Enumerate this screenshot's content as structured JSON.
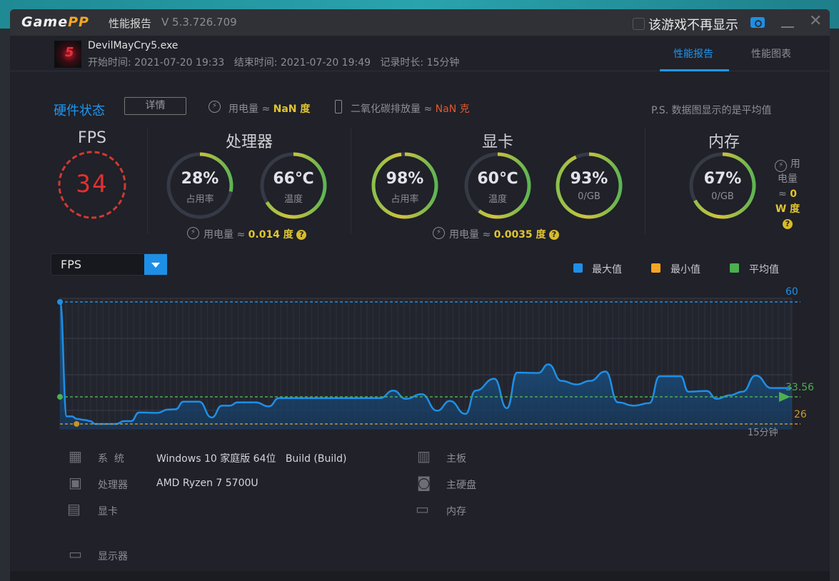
{
  "app": {
    "logo": "GamePP",
    "title": "性能报告",
    "version": "V 5.3.726.709",
    "hide_checkbox_label": "该游戏不再显示",
    "hide_checked": false
  },
  "game": {
    "name": "DevilMayCry5.exe",
    "start_label": "开始时间:",
    "start": "2021-07-20 19:33",
    "end_label": "结束时间:",
    "end": "2021-07-20 19:49",
    "duration_label": "记录时长:",
    "duration": "15分钟"
  },
  "tabs": [
    {
      "label": "性能报告",
      "active": true
    },
    {
      "label": "性能图表",
      "active": false
    }
  ],
  "hw": {
    "title": "硬件状态",
    "detail_btn": "详情",
    "power_label": "用电量 ≈",
    "power_value": "NaN 度",
    "co2_label": "二氧化碳排放量 ≈",
    "co2_value": "NaN 克",
    "note": "P.S. 数据图显示的是平均值"
  },
  "fps": {
    "title": "FPS",
    "value": "34"
  },
  "cpu": {
    "title": "处理器",
    "usage": {
      "value": "28%",
      "label": "占用率",
      "fraction": 0.28
    },
    "temp": {
      "value": "66℃",
      "label": "温度",
      "fraction": 0.66
    },
    "power_label": "用电量 ≈",
    "power_value": "0.014 度"
  },
  "gpu": {
    "title": "显卡",
    "usage": {
      "value": "98%",
      "label": "占用率",
      "fraction": 0.98
    },
    "temp": {
      "value": "60℃",
      "label": "温度",
      "fraction": 0.6
    },
    "vram": {
      "value": "93%",
      "label": "0/GB",
      "fraction": 0.93
    },
    "power_label": "用电量 ≈",
    "power_value": "0.0035 度"
  },
  "mem": {
    "title": "内存",
    "usage": {
      "value": "67%",
      "label": "0/GB",
      "fraction": 0.67
    },
    "power_label1": "用",
    "power_label2": "电量",
    "power_value": "≈ 0",
    "power_unit": "W 度"
  },
  "help_icon": "?",
  "colors": {
    "accent": "#1e96f0",
    "max": "#1e8fe6",
    "min": "#f5a623",
    "avg": "#4caf50",
    "fps_red": "#e03030"
  },
  "chart_data": {
    "type": "area",
    "metric_select": "FPS",
    "legend": [
      "最大值",
      "最小值",
      "平均值"
    ],
    "legend_placement": "top-right",
    "x_end_label": "15分钟",
    "xlim": [
      0,
      15
    ],
    "ylim": [
      24.6,
      60
    ],
    "max": {
      "value": 60,
      "label": "60"
    },
    "min": {
      "value": 26,
      "label": "26"
    },
    "avg": {
      "value": 33.56,
      "label": "33.56"
    },
    "x": [
      0,
      0.14,
      0.24,
      0.35,
      0.51,
      0.62,
      0.72,
      1.15,
      1.31,
      1.46,
      1.62,
      2.0,
      2.21,
      2.37,
      2.53,
      2.85,
      3.11,
      3.32,
      3.48,
      3.64,
      4.01,
      4.28,
      4.49,
      6.56,
      6.83,
      7.09,
      7.41,
      7.73,
      7.99,
      8.31,
      8.52,
      8.9,
      9.16,
      9.37,
      9.8,
      10.01,
      10.28,
      10.59,
      10.86,
      11.18,
      11.44,
      11.76,
      12.08,
      12.29,
      12.72,
      12.88,
      13.25,
      13.46,
      13.73,
      13.99,
      14.26,
      14.58,
      15
    ],
    "y": [
      60,
      28.1,
      28.1,
      27.4,
      27.1,
      26.8,
      26,
      26,
      26.8,
      26.8,
      29.2,
      29.1,
      30,
      30.1,
      32.2,
      32.2,
      27.8,
      31.1,
      31.1,
      32,
      32,
      30.9,
      33.2,
      33.2,
      35.3,
      33,
      34.3,
      29.7,
      32.4,
      28.8,
      35.3,
      38.6,
      30.4,
      40.3,
      40.2,
      42.6,
      38,
      37,
      38,
      40.6,
      32,
      31.1,
      31.8,
      39.3,
      39.3,
      35,
      35.2,
      33,
      34,
      35,
      39.5,
      36,
      36
    ]
  },
  "sysinfo": {
    "left": [
      {
        "icon": "windows-icon",
        "label": "系  统",
        "value": "Windows 10 家庭版 64位   Build (Build)"
      },
      {
        "icon": "cpu-icon",
        "label": "处理器",
        "value": "AMD Ryzen 7 5700U"
      },
      {
        "icon": "gpu-icon",
        "label": "显卡",
        "value": ""
      },
      {
        "icon": "monitor-icon",
        "label": "显示器",
        "value": ""
      }
    ],
    "right": [
      {
        "icon": "motherboard-icon",
        "label": "主板"
      },
      {
        "icon": "disk-icon",
        "label": "主硬盘"
      },
      {
        "icon": "memory-icon",
        "label": "内存"
      }
    ]
  }
}
